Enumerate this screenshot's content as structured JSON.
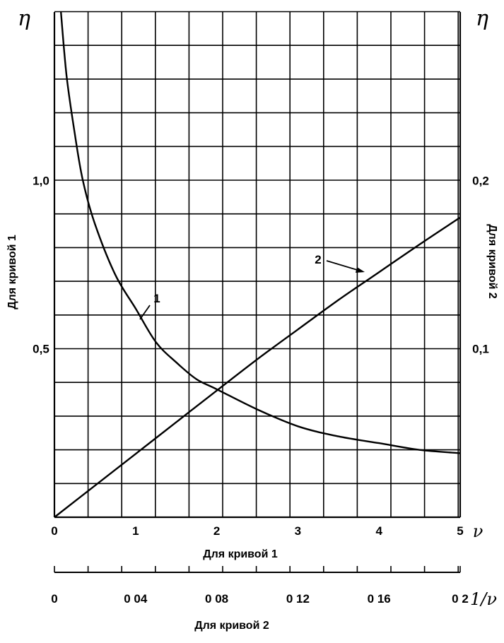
{
  "chart_data": {
    "type": "line",
    "left_axis": {
      "symbol": "η",
      "label": "Для кривой 1",
      "ticks": [
        {
          "value": 0.5,
          "label": "0,5"
        },
        {
          "value": 1.0,
          "label": "1,0"
        }
      ],
      "range": [
        0,
        1.5
      ]
    },
    "right_axis": {
      "symbol": "η",
      "label": "Для кривой 2",
      "ticks": [
        {
          "value": 0.1,
          "label": "0,1"
        },
        {
          "value": 0.2,
          "label": "0,2"
        }
      ],
      "range": [
        0,
        0.3
      ]
    },
    "bottom_axis_1": {
      "symbol": "ν",
      "label": "Для кривой 1",
      "ticks": [
        {
          "value": 0,
          "label": "0"
        },
        {
          "value": 1,
          "label": "1"
        },
        {
          "value": 2,
          "label": "2"
        },
        {
          "value": 3,
          "label": "3"
        },
        {
          "value": 4,
          "label": "4"
        },
        {
          "value": 5,
          "label": "5"
        }
      ],
      "range": [
        0,
        5
      ]
    },
    "bottom_axis_2": {
      "symbol": "1/ν",
      "label": "Для кривой 2",
      "ticks": [
        {
          "value": 0,
          "label": "0"
        },
        {
          "value": 0.04,
          "label": "0 04"
        },
        {
          "value": 0.08,
          "label": "0 08"
        },
        {
          "value": 0.12,
          "label": "0 12"
        },
        {
          "value": 0.16,
          "label": "0 16"
        },
        {
          "value": 0.2,
          "label": "0 2"
        }
      ],
      "range": [
        0,
        0.2
      ]
    },
    "grid": true,
    "series": [
      {
        "name": "1",
        "axes": "bottom_axis_1/left_axis",
        "x": [
          0.08,
          0.15,
          0.25,
          0.35,
          0.5,
          0.75,
          1.0,
          1.25,
          1.5,
          1.75,
          2.0,
          2.5,
          3.0,
          3.5,
          4.0,
          4.5,
          5.0
        ],
        "y": [
          1.5,
          1.31,
          1.14,
          1.0,
          0.87,
          0.72,
          0.62,
          0.52,
          0.46,
          0.41,
          0.38,
          0.32,
          0.27,
          0.24,
          0.22,
          0.2,
          0.19
        ]
      },
      {
        "name": "2",
        "axes": "bottom_axis_2/right_axis",
        "x": [
          0,
          0.02,
          0.04,
          0.06,
          0.08,
          0.1,
          0.12,
          0.14,
          0.16,
          0.18,
          0.2
        ],
        "y": [
          0,
          0.0188,
          0.0376,
          0.0564,
          0.0752,
          0.0938,
          0.1115,
          0.129,
          0.1455,
          0.162,
          0.178
        ]
      }
    ]
  }
}
